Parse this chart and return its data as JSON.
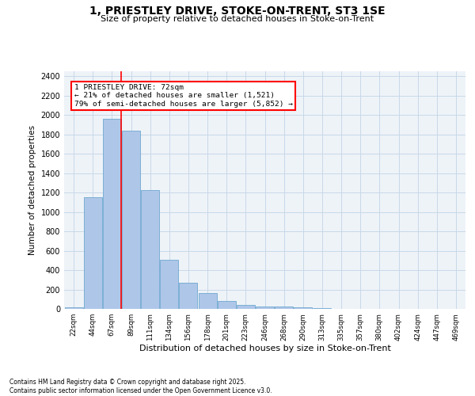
{
  "title": "1, PRIESTLEY DRIVE, STOKE-ON-TRENT, ST3 1SE",
  "subtitle": "Size of property relative to detached houses in Stoke-on-Trent",
  "xlabel": "Distribution of detached houses by size in Stoke-on-Trent",
  "ylabel": "Number of detached properties",
  "categories": [
    "22sqm",
    "44sqm",
    "67sqm",
    "89sqm",
    "111sqm",
    "134sqm",
    "156sqm",
    "178sqm",
    "201sqm",
    "223sqm",
    "246sqm",
    "268sqm",
    "290sqm",
    "313sqm",
    "335sqm",
    "357sqm",
    "380sqm",
    "402sqm",
    "424sqm",
    "447sqm",
    "469sqm"
  ],
  "values": [
    20,
    1150,
    1960,
    1840,
    1225,
    510,
    270,
    165,
    78,
    38,
    28,
    28,
    18,
    5,
    2,
    1,
    1,
    0,
    0,
    0,
    0
  ],
  "bar_color": "#aec6e8",
  "bar_edge_color": "#6fa8d0",
  "property_line_bar_index": 2,
  "property_line_color": "red",
  "annotation_box_text": "1 PRIESTLEY DRIVE: 72sqm\n← 21% of detached houses are smaller (1,521)\n79% of semi-detached houses are larger (5,852) →",
  "ylim": [
    0,
    2450
  ],
  "yticks": [
    0,
    200,
    400,
    600,
    800,
    1000,
    1200,
    1400,
    1600,
    1800,
    2000,
    2200,
    2400
  ],
  "grid_color": "#c8d8e8",
  "background_color": "#eef3f8",
  "footer_line1": "Contains HM Land Registry data © Crown copyright and database right 2025.",
  "footer_line2": "Contains public sector information licensed under the Open Government Licence v3.0."
}
